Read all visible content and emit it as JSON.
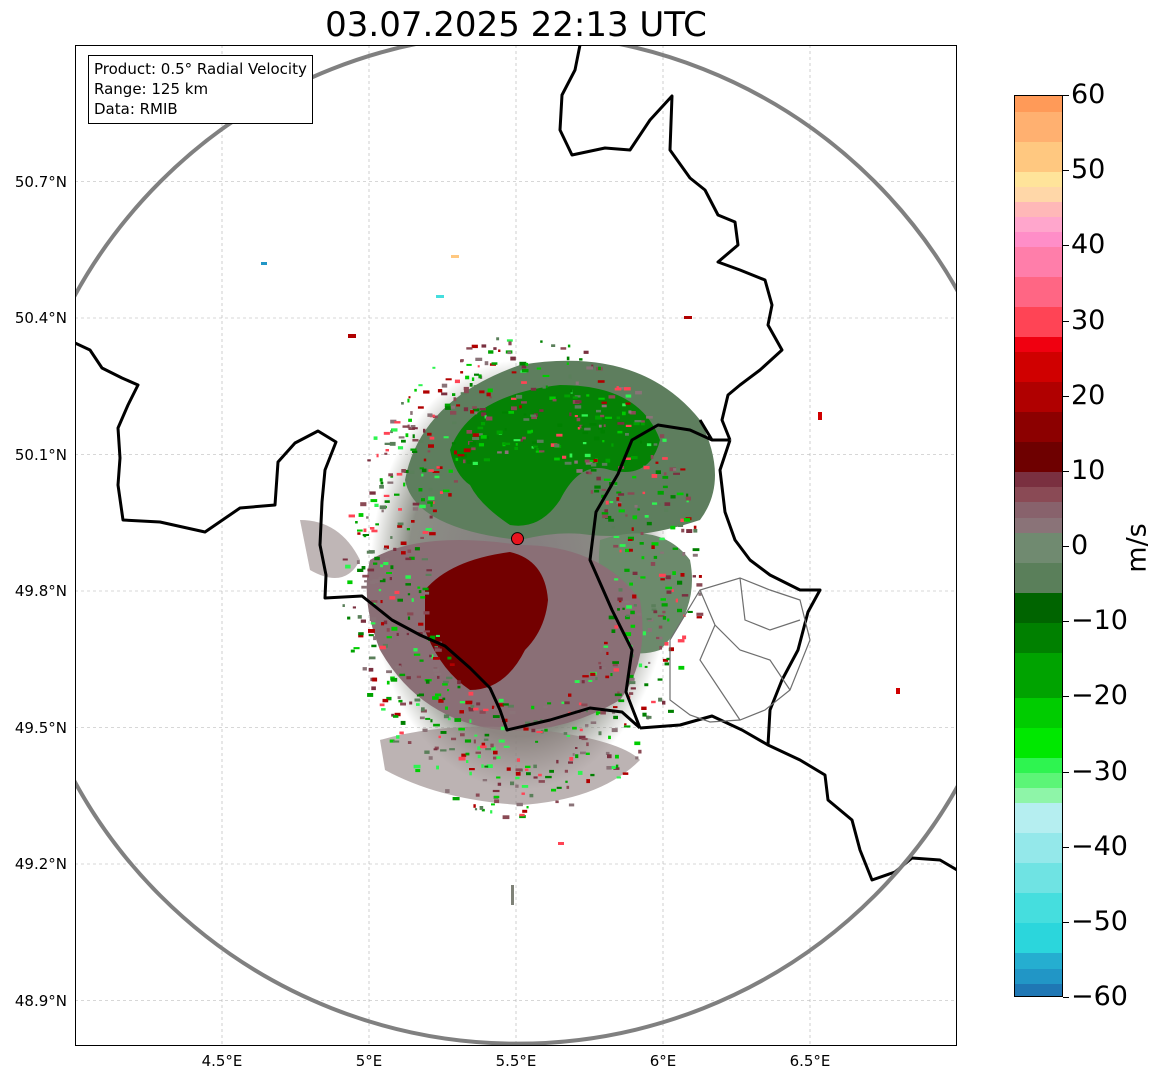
{
  "title": "03.07.2025 22:13 UTC",
  "info": {
    "product": "Product: 0.5° Radial Velocity",
    "range": "Range: 125 km",
    "source": "Data: RMIB"
  },
  "map": {
    "extent": {
      "lon_min": 4.0,
      "lon_max": 7.0,
      "lat_min": 48.8,
      "lat_max": 51.0
    },
    "lat_ticks": [
      {
        "value": 50.7,
        "label": "50.7°N"
      },
      {
        "value": 50.4,
        "label": "50.4°N"
      },
      {
        "value": 50.1,
        "label": "50.1°N"
      },
      {
        "value": 49.8,
        "label": "49.8°N"
      },
      {
        "value": 49.5,
        "label": "49.5°N"
      },
      {
        "value": 49.2,
        "label": "49.2°N"
      },
      {
        "value": 48.9,
        "label": "48.9°N"
      }
    ],
    "lon_ticks": [
      {
        "value": 4.5,
        "label": "4.5°E"
      },
      {
        "value": 5.0,
        "label": "5°E"
      },
      {
        "value": 5.5,
        "label": "5.5°E"
      },
      {
        "value": 6.0,
        "label": "6°E"
      },
      {
        "value": 6.5,
        "label": "6.5°E"
      }
    ],
    "radar_site": {
      "lon": 5.505,
      "lat": 49.915,
      "color": "#e8141e"
    },
    "range_ring_color": "#808080",
    "border_color": "#000000",
    "grid": true
  },
  "colorbar": {
    "label": "m/s",
    "vmin": -60,
    "vmax": 60,
    "ticks": [
      {
        "value": 60,
        "label": "60"
      },
      {
        "value": 50,
        "label": "50"
      },
      {
        "value": 40,
        "label": "40"
      },
      {
        "value": 30,
        "label": "30"
      },
      {
        "value": 20,
        "label": "20"
      },
      {
        "value": 10,
        "label": "10"
      },
      {
        "value": 0,
        "label": "0"
      },
      {
        "value": -10,
        "label": "−10"
      },
      {
        "value": -20,
        "label": "−20"
      },
      {
        "value": -30,
        "label": "−30"
      },
      {
        "value": -40,
        "label": "−40"
      },
      {
        "value": -50,
        "label": "−50"
      },
      {
        "value": -60,
        "label": "−60"
      }
    ],
    "stops": [
      {
        "from": -60,
        "to": -58,
        "color": "#1f77b4"
      },
      {
        "from": -58,
        "to": -56,
        "color": "#2196c6"
      },
      {
        "from": -56,
        "to": -54,
        "color": "#25aed0"
      },
      {
        "from": -54,
        "to": -50,
        "color": "#2bd6dc"
      },
      {
        "from": -50,
        "to": -46,
        "color": "#45dede"
      },
      {
        "from": -46,
        "to": -42,
        "color": "#6fe3e3"
      },
      {
        "from": -42,
        "to": -38,
        "color": "#94e8ea"
      },
      {
        "from": -38,
        "to": -34,
        "color": "#b5eef0"
      },
      {
        "from": -34,
        "to": -32,
        "color": "#8ef5a8"
      },
      {
        "from": -32,
        "to": -30,
        "color": "#5cf577"
      },
      {
        "from": -30,
        "to": -28,
        "color": "#2ef450"
      },
      {
        "from": -28,
        "to": -24,
        "color": "#00e800"
      },
      {
        "from": -24,
        "to": -20,
        "color": "#00cc00"
      },
      {
        "from": -20,
        "to": -14,
        "color": "#00a300"
      },
      {
        "from": -14,
        "to": -10,
        "color": "#008000"
      },
      {
        "from": -10,
        "to": -6,
        "color": "#006400"
      },
      {
        "from": -6,
        "to": -2,
        "color": "#5a7f5a"
      },
      {
        "from": -2,
        "to": 2,
        "color": "#708a70"
      },
      {
        "from": 2,
        "to": 4,
        "color": "#8a7378"
      },
      {
        "from": 4,
        "to": 6,
        "color": "#88626c"
      },
      {
        "from": 6,
        "to": 8,
        "color": "#8a4a55"
      },
      {
        "from": 8,
        "to": 10,
        "color": "#7a3040"
      },
      {
        "from": 10,
        "to": 14,
        "color": "#6e0000"
      },
      {
        "from": 14,
        "to": 18,
        "color": "#8c0000"
      },
      {
        "from": 18,
        "to": 22,
        "color": "#b00000"
      },
      {
        "from": 22,
        "to": 26,
        "color": "#d00000"
      },
      {
        "from": 26,
        "to": 28,
        "color": "#f00010"
      },
      {
        "from": 28,
        "to": 32,
        "color": "#ff4455"
      },
      {
        "from": 32,
        "to": 36,
        "color": "#ff6684"
      },
      {
        "from": 36,
        "to": 40,
        "color": "#ff7eaa"
      },
      {
        "from": 40,
        "to": 42,
        "color": "#ff8ec8"
      },
      {
        "from": 42,
        "to": 44,
        "color": "#ffa6cc"
      },
      {
        "from": 44,
        "to": 46,
        "color": "#ffb8b8"
      },
      {
        "from": 46,
        "to": 48,
        "color": "#ffd7a8"
      },
      {
        "from": 48,
        "to": 50,
        "color": "#ffe49a"
      },
      {
        "from": 50,
        "to": 54,
        "color": "#ffc880"
      },
      {
        "from": 54,
        "to": 58,
        "color": "#ffb070"
      },
      {
        "from": 58,
        "to": 60,
        "color": "#ff9a58"
      }
    ]
  }
}
